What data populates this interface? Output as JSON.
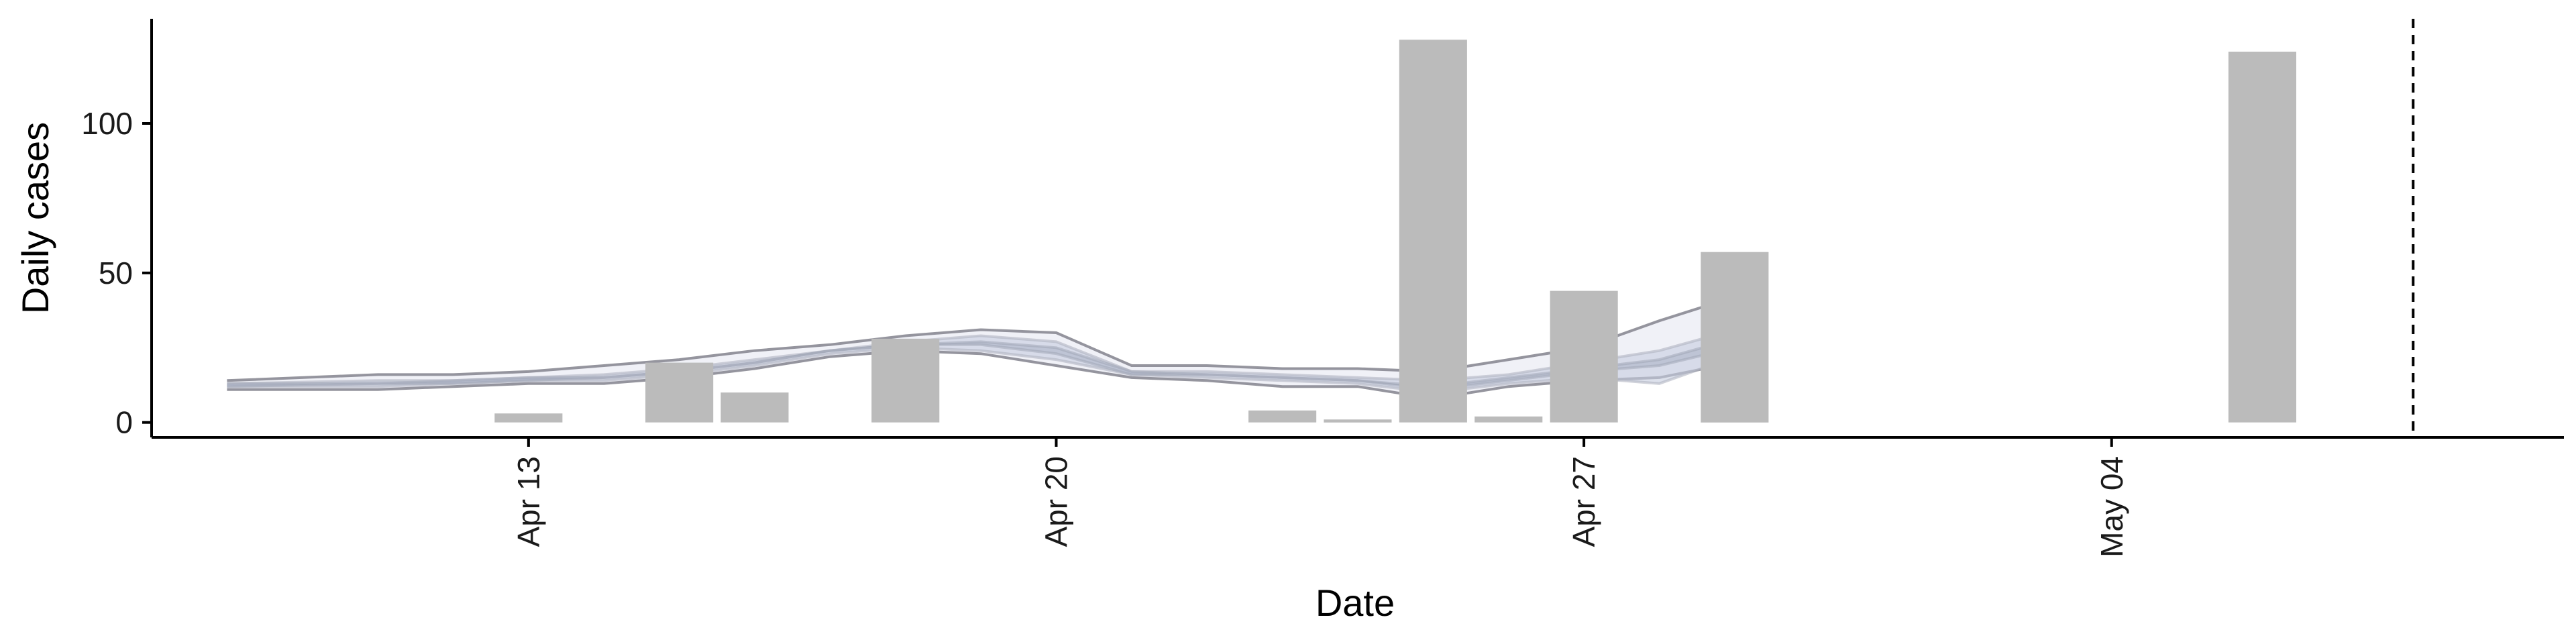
{
  "chart_data": {
    "type": "bar",
    "title": "",
    "xlabel": "Date",
    "ylabel": "Daily cases",
    "ylim": [
      -5,
      135
    ],
    "yticks": [
      0,
      50,
      100
    ],
    "x_range": [
      "2020-04-08",
      "2020-05-10"
    ],
    "x_ticks": [
      {
        "date": "2020-04-13",
        "label": "Apr 13"
      },
      {
        "date": "2020-04-20",
        "label": "Apr 20"
      },
      {
        "date": "2020-04-27",
        "label": "Apr 27"
      },
      {
        "date": "2020-05-04",
        "label": "May 04"
      }
    ],
    "bars": [
      {
        "date": "2020-04-13",
        "value": 3
      },
      {
        "date": "2020-04-15",
        "value": 20
      },
      {
        "date": "2020-04-16",
        "value": 10
      },
      {
        "date": "2020-04-18",
        "value": 28
      },
      {
        "date": "2020-04-23",
        "value": 4
      },
      {
        "date": "2020-04-24",
        "value": 1
      },
      {
        "date": "2020-04-25",
        "value": 128
      },
      {
        "date": "2020-04-26",
        "value": 2
      },
      {
        "date": "2020-04-27",
        "value": 44
      },
      {
        "date": "2020-04-29",
        "value": 57
      },
      {
        "date": "2020-05-06",
        "value": 124
      }
    ],
    "bands": [
      {
        "dates": [
          "2020-04-09",
          "2020-04-11",
          "2020-04-12",
          "2020-04-13",
          "2020-04-14",
          "2020-04-15",
          "2020-04-16",
          "2020-04-17",
          "2020-04-18",
          "2020-04-19",
          "2020-04-20",
          "2020-04-21",
          "2020-04-22",
          "2020-04-23",
          "2020-04-24",
          "2020-04-25",
          "2020-04-26",
          "2020-04-27",
          "2020-04-28",
          "2020-04-29"
        ],
        "lower": [
          11,
          11,
          12,
          13,
          13,
          15,
          18,
          22,
          24,
          23,
          19,
          15,
          14,
          12,
          12,
          8,
          12,
          14,
          15,
          20
        ],
        "upper": [
          14,
          16,
          16,
          17,
          19,
          21,
          24,
          26,
          29,
          31,
          30,
          19,
          19,
          18,
          18,
          17,
          21,
          25,
          34,
          42
        ],
        "fill": "#e6e8f1",
        "opacity": 0.6,
        "stroke": "#8a8a94",
        "stroke_opacity": 0.9
      },
      {
        "dates": [
          "2020-04-09",
          "2020-04-11",
          "2020-04-12",
          "2020-04-13",
          "2020-04-14",
          "2020-04-15",
          "2020-04-16",
          "2020-04-17",
          "2020-04-18",
          "2020-04-19",
          "2020-04-20",
          "2020-04-21",
          "2020-04-22",
          "2020-04-23",
          "2020-04-24",
          "2020-04-25",
          "2020-04-26",
          "2020-04-27",
          "2020-04-28",
          "2020-04-29"
        ],
        "lower": [
          12,
          12,
          13,
          14,
          14,
          16,
          19,
          23,
          25,
          24,
          21,
          16,
          15,
          14,
          13,
          10,
          13,
          15,
          13,
          22
        ],
        "upper": [
          13,
          14,
          14,
          15,
          16,
          18,
          21,
          24,
          27,
          29,
          27,
          17,
          17,
          16,
          15,
          14,
          16,
          20,
          24,
          31
        ],
        "fill": "#c7cde0",
        "opacity": 0.6,
        "stroke": "#b0b4c2",
        "stroke_opacity": 0.6
      },
      {
        "dates": [
          "2020-04-09",
          "2020-04-11",
          "2020-04-12",
          "2020-04-13",
          "2020-04-14",
          "2020-04-15",
          "2020-04-16",
          "2020-04-17",
          "2020-04-18",
          "2020-04-19",
          "2020-04-20",
          "2020-04-21",
          "2020-04-22",
          "2020-04-23",
          "2020-04-24",
          "2020-04-25",
          "2020-04-26",
          "2020-04-27",
          "2020-04-28",
          "2020-04-29"
        ],
        "lower": [
          12,
          13,
          13,
          14,
          15,
          17,
          20,
          24,
          26,
          26,
          23,
          16,
          16,
          15,
          14,
          11,
          14,
          17,
          19,
          25
        ],
        "upper": [
          13,
          13,
          14,
          15,
          15,
          17,
          20,
          24,
          26,
          27,
          25,
          17,
          16,
          15,
          14,
          12,
          15,
          18,
          21,
          28
        ],
        "fill": "#aeb4c8",
        "opacity": 0.6,
        "stroke": "#9ea3b4",
        "stroke_opacity": 0.5
      }
    ],
    "reference_line": {
      "date": "2020-05-08",
      "style": "dashed"
    },
    "bar_color": "#bbbbbb",
    "grid": false,
    "legend": "none"
  }
}
